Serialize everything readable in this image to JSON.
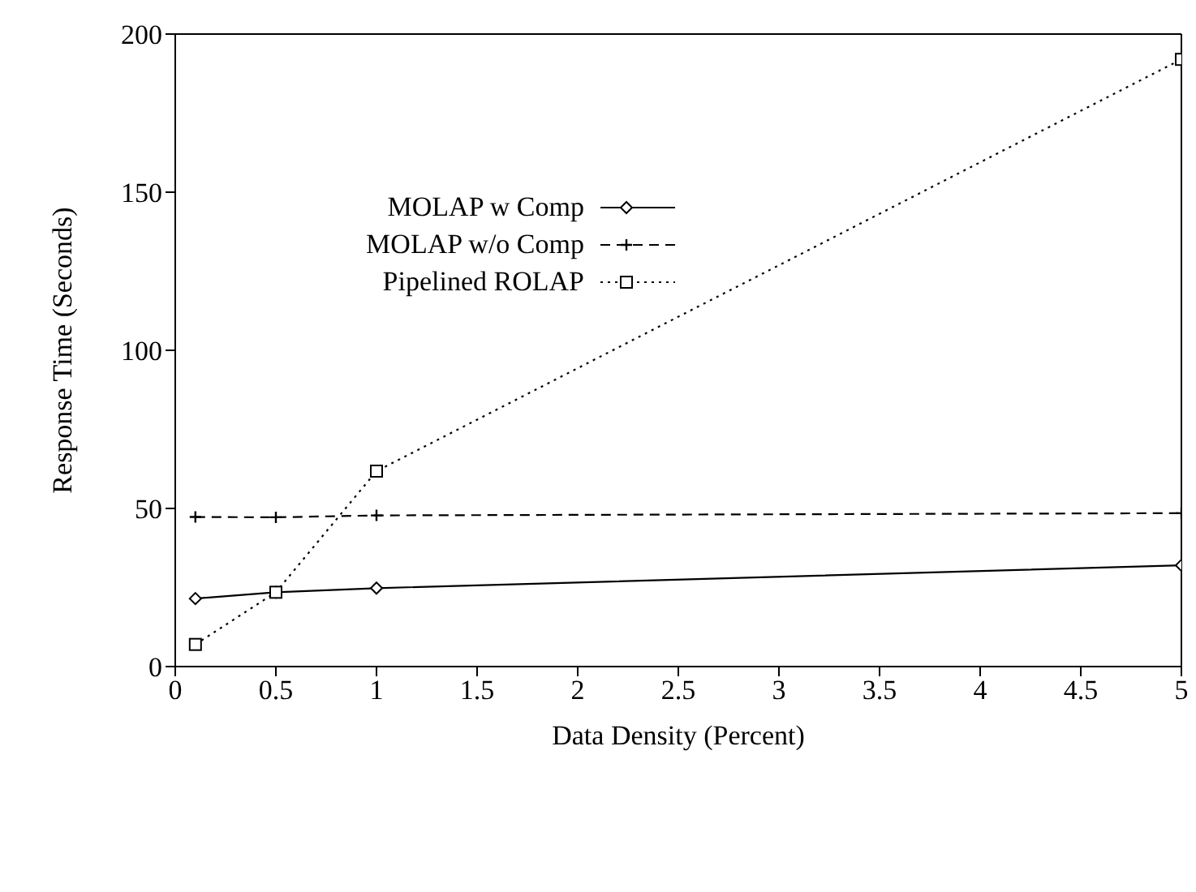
{
  "chart_data": {
    "type": "line",
    "xlabel": "Data Density (Percent)",
    "ylabel": "Response Time (Seconds)",
    "x": [
      0.1,
      0.5,
      1,
      5
    ],
    "series": [
      {
        "name": "MOLAP w Comp",
        "color": "#000000",
        "values": [
          21.5,
          23.5,
          24.8,
          32
        ],
        "marker": "diamond",
        "line_style": "solid"
      },
      {
        "name": "MOLAP w/o Comp",
        "color": "#000000",
        "values": [
          47.3,
          47.2,
          47.8,
          48.5
        ],
        "marker": "cross",
        "line_style": "dashed"
      },
      {
        "name": "Pipelined ROLAP",
        "color": "#000000",
        "values": [
          7,
          23.5,
          61.8,
          192
        ],
        "marker": "square",
        "line_style": "dotted"
      }
    ],
    "xlim": [
      0,
      5
    ],
    "xticks": [
      0,
      0.5,
      1,
      1.5,
      2,
      2.5,
      3,
      3.5,
      4,
      4.5,
      5
    ],
    "ylim": [
      0,
      200
    ],
    "yticks": [
      0,
      50,
      100,
      150,
      200
    ],
    "grid": false,
    "legend": "top left"
  }
}
